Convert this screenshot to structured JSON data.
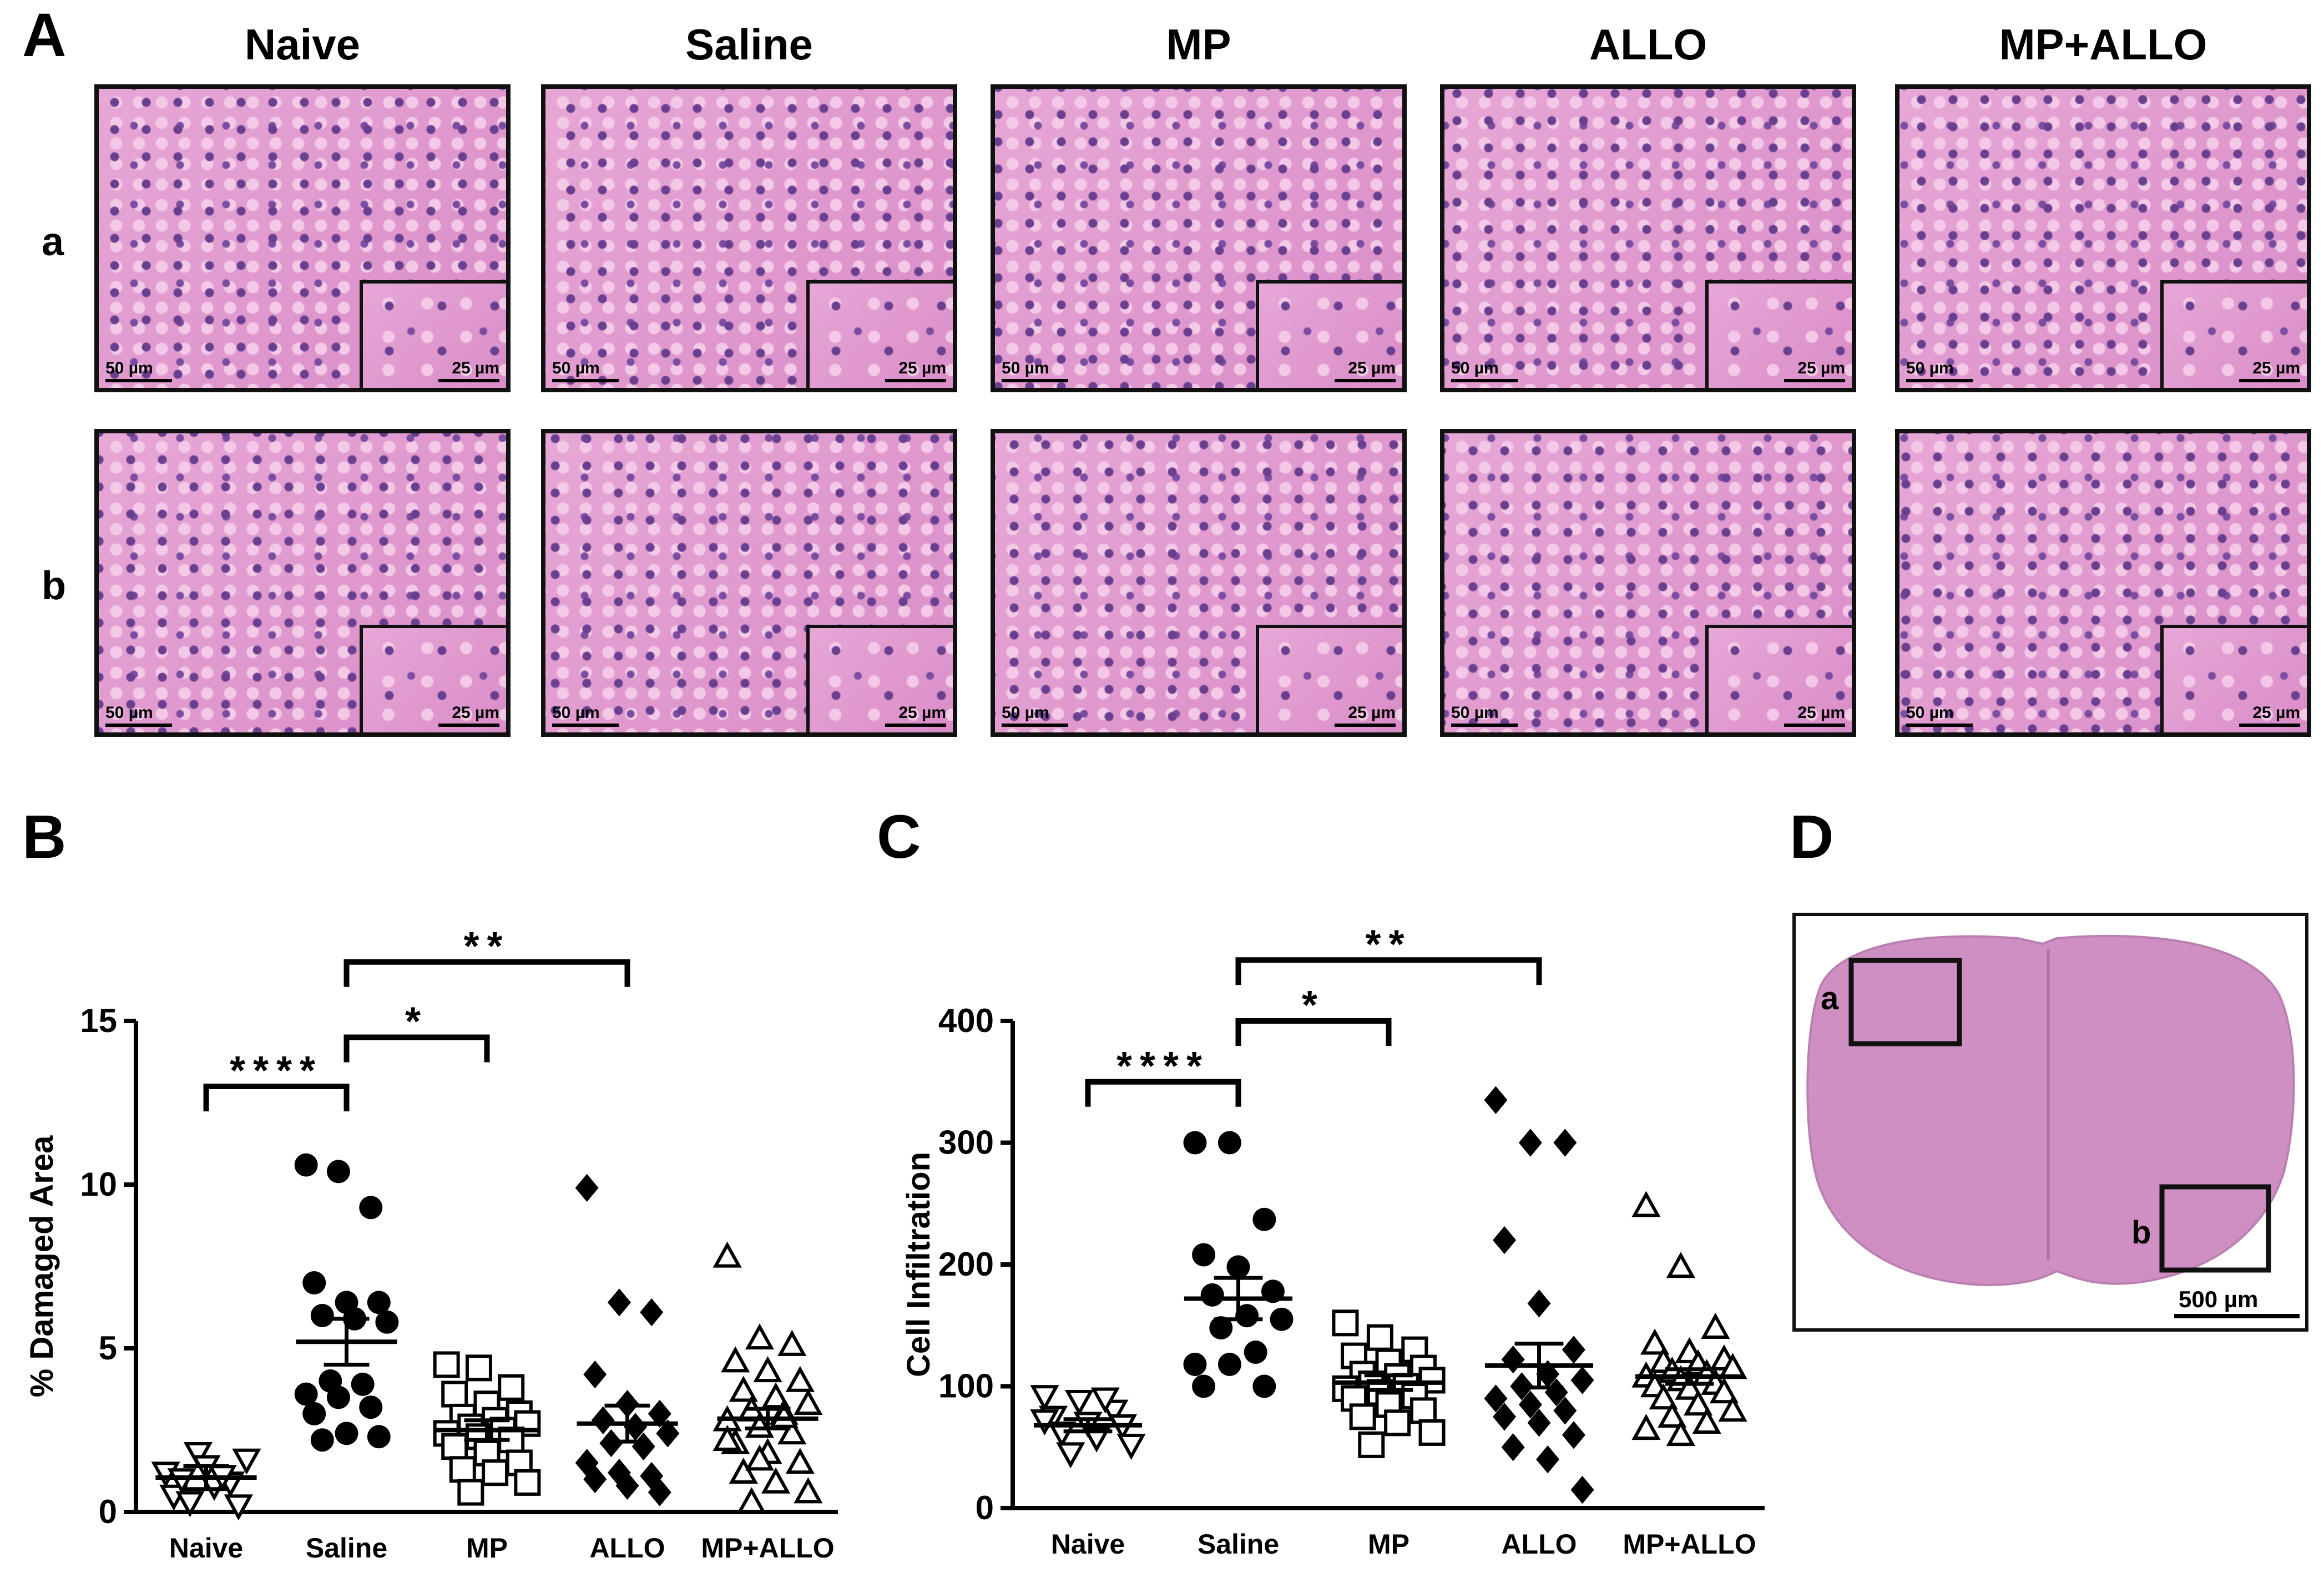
{
  "panel_a": {
    "letter": "A",
    "columns": [
      "Naive",
      "Saline",
      "MP",
      "ALLO",
      "MP+ALLO"
    ],
    "rows": [
      "a",
      "b"
    ],
    "scale_main": "50 µm",
    "scale_inset": "25 µm"
  },
  "panel_b": {
    "letter": "B"
  },
  "panel_c": {
    "letter": "C"
  },
  "panel_d": {
    "letter": "D",
    "box_a": "a",
    "box_b": "b",
    "scale": "500 µm"
  },
  "colors": {
    "he_stain": "#e29ad0",
    "nuclei": "#6a3f8f",
    "axis": "#000000"
  },
  "chart_data": [
    {
      "type": "scatter",
      "panel": "B",
      "ylabel": "% Damaged Area",
      "xlabel": "",
      "ylim": [
        0,
        15
      ],
      "yticks": [
        0,
        5,
        10,
        15
      ],
      "categories": [
        "Naive",
        "Saline",
        "MP",
        "ALLO",
        "MP+ALLO"
      ],
      "markers": [
        "triangle-down-open",
        "circle-filled",
        "square-open",
        "diamond-filled",
        "triangle-up-open"
      ],
      "series": [
        {
          "values": [
            1.2,
            1.8,
            0.9,
            0.5,
            1.4,
            0.2,
            1.0,
            0.8,
            1.6,
            0.3,
            1.1
          ],
          "mean": 1.05,
          "sem": 0.35
        },
        {
          "values": [
            10.6,
            10.4,
            9.3,
            7.0,
            6.4,
            6.4,
            6.0,
            5.9,
            5.8,
            4.0,
            3.9,
            3.6,
            3.5,
            3.2,
            3.0,
            2.4,
            2.3,
            2.2
          ],
          "mean": 5.2,
          "sem": 0.7
        },
        {
          "values": [
            4.5,
            4.4,
            3.8,
            3.6,
            3.3,
            3.0,
            2.9,
            2.8,
            2.7,
            2.6,
            2.5,
            2.4,
            2.3,
            2.2,
            2.0,
            1.8,
            1.5,
            1.3,
            1.2,
            0.9,
            0.6
          ],
          "mean": 2.5,
          "sem": 0.3
        },
        {
          "values": [
            9.9,
            6.4,
            6.1,
            4.2,
            3.3,
            3.0,
            2.8,
            2.6,
            2.4,
            2.1,
            2.0,
            1.5,
            1.2,
            1.1,
            1.0,
            0.8,
            0.6
          ],
          "mean": 2.7,
          "sem": 0.55
        },
        {
          "values": [
            7.8,
            5.3,
            5.1,
            4.6,
            4.3,
            4.0,
            3.7,
            3.5,
            3.3,
            3.1,
            3.0,
            2.8,
            2.6,
            2.4,
            2.1,
            1.8,
            1.5,
            1.2,
            0.9,
            0.6,
            0.3,
            2.9,
            2.2,
            1.6
          ],
          "mean": 2.85,
          "sem": 0.3
        }
      ],
      "significance": [
        {
          "from": 0,
          "to": 1,
          "label": "****",
          "level": 13.0
        },
        {
          "from": 1,
          "to": 2,
          "label": "*",
          "level": 14.5
        },
        {
          "from": 1,
          "to": 3,
          "label": "**",
          "level": 16.8
        }
      ]
    },
    {
      "type": "scatter",
      "panel": "C",
      "ylabel": "Cell Infiltration",
      "xlabel": "",
      "ylim": [
        0,
        400
      ],
      "yticks": [
        0,
        100,
        200,
        300,
        400
      ],
      "categories": [
        "Naive",
        "Saline",
        "MP",
        "ALLO",
        "MP+ALLO"
      ],
      "markers": [
        "triangle-down-open",
        "circle-filled",
        "square-open",
        "diamond-filled",
        "triangle-up-open"
      ],
      "series": [
        {
          "values": [
            92,
            88,
            80,
            75,
            70,
            68,
            62,
            58,
            52,
            45,
            90,
            72
          ],
          "mean": 68,
          "sem": 5
        },
        {
          "values": [
            300,
            300,
            237,
            208,
            198,
            178,
            175,
            158,
            155,
            148,
            128,
            118,
            118,
            100,
            100
          ],
          "mean": 172,
          "sem": 17
        },
        {
          "values": [
            152,
            140,
            130,
            125,
            120,
            115,
            110,
            108,
            105,
            102,
            100,
            98,
            95,
            92,
            90,
            85,
            80,
            75,
            70,
            62,
            52
          ],
          "mean": 103,
          "sem": 6
        },
        {
          "values": [
            335,
            300,
            300,
            220,
            168,
            130,
            122,
            110,
            105,
            100,
            95,
            90,
            85,
            80,
            75,
            70,
            60,
            50,
            40,
            15
          ],
          "mean": 117,
          "sem": 18
        },
        {
          "values": [
            248,
            198,
            148,
            135,
            128,
            122,
            120,
            118,
            115,
            112,
            110,
            108,
            105,
            102,
            100,
            98,
            95,
            90,
            85,
            80,
            75,
            70,
            65,
            60
          ],
          "mean": 108,
          "sem": 6
        }
      ],
      "significance": [
        {
          "from": 0,
          "to": 1,
          "label": "****",
          "level": 350
        },
        {
          "from": 1,
          "to": 2,
          "label": "*",
          "level": 400
        },
        {
          "from": 1,
          "to": 3,
          "label": "**",
          "level": 450
        }
      ]
    }
  ]
}
